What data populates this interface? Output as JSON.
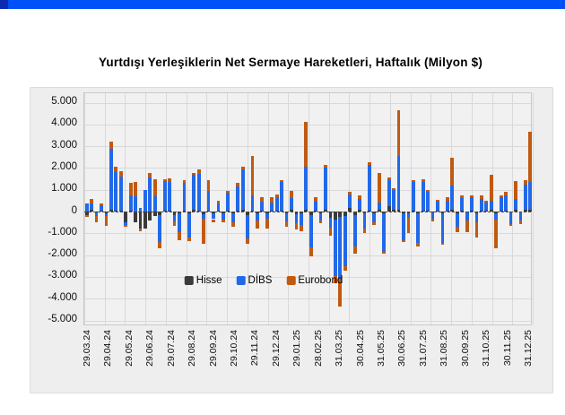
{
  "header": {
    "strip_color": "#0050f8",
    "strip_accent_color": "#0c2bb0"
  },
  "chart": {
    "title": "Yurtdışı Yerleşiklerin Net Sermaye Hareketleri, Haftalık (Milyon $)"
  },
  "chart_data": {
    "type": "bar",
    "stacked": true,
    "title": "Yurtdışı Yerleşiklerin Net Sermaye Hareketleri, Haftalık (Milyon $)",
    "unit": "Milyon $",
    "frequency": "Haftalık",
    "ylim": [
      -5000,
      5000
    ],
    "ytick_step": 1000,
    "ytick_labels": [
      "5.000",
      "4.000",
      "3.000",
      "2.000",
      "1.000",
      "0",
      "-1.000",
      "-2.000",
      "-3.000",
      "-4.000",
      "-5.000"
    ],
    "grid": true,
    "legend_position": "inside-bottom",
    "x_labels": [
      "29.03.24",
      "29.04.24",
      "29.05.24",
      "29.06.24",
      "29.07.24",
      "29.08.24",
      "29.09.24",
      "29.10.24",
      "29.11.24",
      "29.12.24",
      "29.01.25",
      "28.02.25",
      "31.03.25",
      "30.04.25",
      "31.05.25",
      "30.06.25",
      "31.07.25",
      "31.08.25",
      "30.09.25",
      "31.10.25",
      "30.11.25",
      "31.12.25"
    ],
    "series": [
      {
        "name": "Hisse",
        "color": "#3a3a3a",
        "values": [
          -170,
          80,
          -60,
          50,
          -80,
          100,
          50,
          50,
          -500,
          60,
          -500,
          -800,
          -800,
          -400,
          -200,
          -150,
          50,
          60,
          -150,
          -100,
          50,
          -100,
          80,
          60,
          -120,
          60,
          -100,
          50,
          -80,
          60,
          -100,
          50,
          70,
          -150,
          60,
          -100,
          50,
          -80,
          60,
          50,
          60,
          -100,
          80,
          -120,
          -100,
          100,
          -150,
          60,
          -100,
          80,
          -300,
          -350,
          -250,
          -200,
          150,
          -150,
          80,
          -100,
          60,
          -80,
          100,
          -100,
          250,
          80,
          100,
          -100,
          -80,
          60,
          -100,
          50,
          40,
          -60,
          50,
          -80,
          50,
          80,
          -80,
          50,
          -60,
          50,
          -80,
          60,
          50,
          80,
          -80,
          50,
          60,
          -60,
          80,
          -60,
          70,
          100
        ]
      },
      {
        "name": "DİBS",
        "color": "#2268e8",
        "values": [
          380,
          300,
          -150,
          250,
          -120,
          2800,
          1750,
          1550,
          -100,
          700,
          700,
          150,
          1000,
          1550,
          700,
          -1250,
          1350,
          1300,
          -300,
          -850,
          1280,
          -1100,
          1600,
          1680,
          -200,
          900,
          -250,
          300,
          -300,
          790,
          -400,
          1100,
          1880,
          -1100,
          700,
          -300,
          400,
          -250,
          350,
          600,
          1300,
          -350,
          550,
          -400,
          -500,
          1950,
          -1500,
          400,
          -300,
          1950,
          -450,
          -2600,
          -2850,
          -2300,
          650,
          -1450,
          500,
          -700,
          2100,
          -400,
          300,
          -1750,
          1200,
          900,
          2450,
          -1200,
          -200,
          1300,
          -1350,
          1300,
          850,
          -250,
          400,
          -1350,
          450,
          1100,
          -600,
          550,
          -350,
          600,
          -400,
          500,
          350,
          400,
          -300,
          600,
          700,
          -500,
          500,
          -350,
          1150,
          1250
        ]
      },
      {
        "name": "Eurobond",
        "color": "#c05a11",
        "values": [
          -80,
          200,
          -300,
          60,
          -450,
          300,
          250,
          250,
          -100,
          550,
          650,
          -100,
          0,
          200,
          800,
          -300,
          100,
          150,
          -200,
          -350,
          100,
          -150,
          100,
          200,
          -1150,
          500,
          -150,
          150,
          -120,
          100,
          -200,
          150,
          100,
          -220,
          1800,
          -400,
          200,
          -450,
          250,
          150,
          100,
          -250,
          300,
          -300,
          -300,
          2050,
          -400,
          200,
          -150,
          100,
          -350,
          -350,
          -1250,
          -200,
          100,
          -350,
          150,
          -200,
          100,
          -150,
          1350,
          -100,
          100,
          100,
          2100,
          -100,
          -700,
          100,
          -150,
          150,
          100,
          -150,
          100,
          -100,
          150,
          1300,
          -250,
          150,
          -550,
          100,
          -700,
          200,
          100,
          1200,
          -1300,
          100,
          150,
          -100,
          800,
          -150,
          200,
          2300
        ]
      }
    ]
  }
}
